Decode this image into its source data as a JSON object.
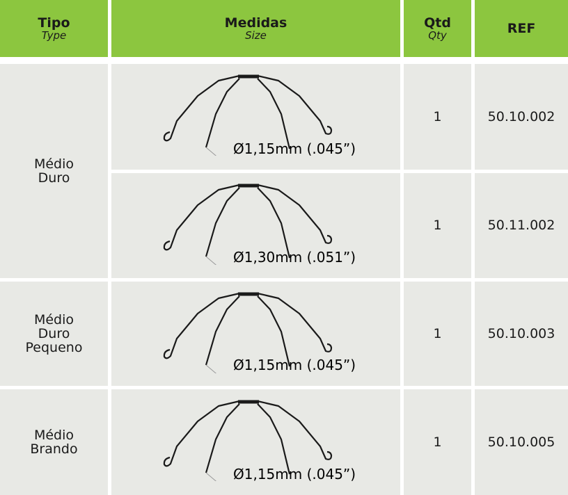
{
  "header": {
    "columns": [
      {
        "title": "Tipo",
        "subtitle": "Type"
      },
      {
        "title": "Medidas",
        "subtitle": "Size"
      },
      {
        "title": "Qtd",
        "subtitle": "Qty"
      },
      {
        "title": "REF"
      }
    ]
  },
  "groups": [
    {
      "tipo": [
        "Médio",
        "Duro"
      ],
      "items": [
        {
          "size": "Ø1,15mm (.045”)",
          "qty": 1,
          "ref": "50.10.002"
        },
        {
          "size": "Ø1,30mm (.051”)",
          "qty": 1,
          "ref": "50.11.002"
        }
      ]
    },
    {
      "tipo": [
        "Médio",
        "Duro",
        "Pequeno"
      ],
      "items": [
        {
          "size": "Ø1,15mm (.045”)",
          "qty": 1,
          "ref": "50.10.003"
        }
      ]
    },
    {
      "tipo": [
        "Médio",
        "Brando"
      ],
      "items": [
        {
          "size": "Ø1,15mm (.045”)",
          "qty": 1,
          "ref": "50.10.005"
        }
      ]
    }
  ]
}
